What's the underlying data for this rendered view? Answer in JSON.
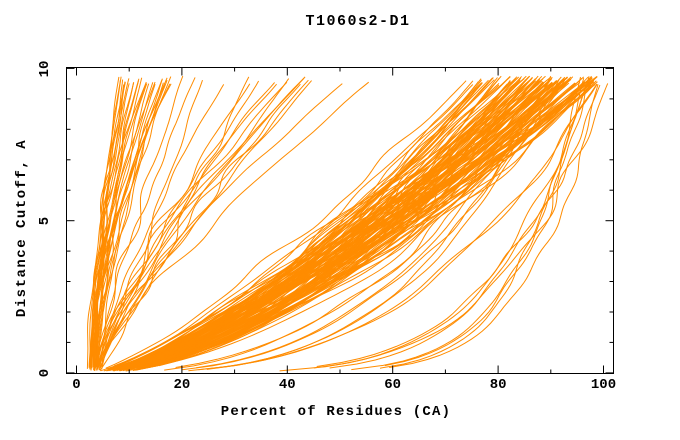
{
  "page": {
    "background": "#FFFFFF"
  },
  "chart_data": {
    "type": "line",
    "title": "T1060s2-D1",
    "xlabel": "Percent of Residues (CA)",
    "ylabel": "Distance Cutoff, A",
    "xlim": [
      -1.9,
      101.9
    ],
    "ylim": [
      -0.02,
      10.03
    ],
    "x_ticks": {
      "labels": [
        "0",
        "20",
        "40",
        "60",
        "80",
        "100"
      ],
      "major_values": [
        0,
        20,
        40,
        60,
        80,
        100
      ],
      "minor_step": 10
    },
    "y_ticks": {
      "labels": [
        "0",
        "5",
        "10"
      ],
      "major_values": [
        0,
        5,
        10
      ],
      "minor_step": 1
    },
    "grid": false,
    "legend": false,
    "colors": {
      "curves": "#FF8C00",
      "frame": "#000000",
      "text": "#000000",
      "background": "#FFFFFF"
    },
    "n_curves_approx": 194,
    "cutoff_span": [
      0.1,
      9.7
    ],
    "curve_families": [
      {
        "name": "steep-left",
        "count": 30,
        "start_percent": [
          2.0,
          4.5
        ],
        "top_percent": [
          8.0,
          18.5
        ],
        "shape_exp": [
          1.3,
          2.1
        ],
        "skew": 1.2,
        "wiggle": [
          0.2,
          0.6
        ]
      },
      {
        "name": "mid-fan",
        "count": 18,
        "start_percent": [
          2.5,
          5.0
        ],
        "top_percent": [
          20.0,
          58.0
        ],
        "shape_exp": [
          0.9,
          1.5
        ],
        "skew": 1.6,
        "wiggle": [
          0.4,
          1.0
        ]
      },
      {
        "name": "main-band",
        "count": 130,
        "start_percent": [
          2.5,
          6.0
        ],
        "top_percent": [
          72.0,
          99.0
        ],
        "shape_exp": [
          0.55,
          0.8
        ],
        "skew": 0.55,
        "wiggle": [
          0.5,
          1.4
        ]
      },
      {
        "name": "band-under",
        "count": 8,
        "start_percent": [
          3.0,
          6.0
        ],
        "top_percent": [
          88.0,
          99.0
        ],
        "shape_exp": [
          0.3,
          0.45
        ],
        "skew": 1.0,
        "wiggle": [
          0.4,
          1.0
        ]
      },
      {
        "name": "right-tail",
        "count": 8,
        "start_percent": [
          3.0,
          7.0
        ],
        "top_percent": [
          95.5,
          101.0
        ],
        "shape_exp": [
          0.12,
          0.22
        ],
        "skew": 1.0,
        "wiggle": [
          0.4,
          1.0
        ]
      }
    ],
    "seed": 42
  }
}
